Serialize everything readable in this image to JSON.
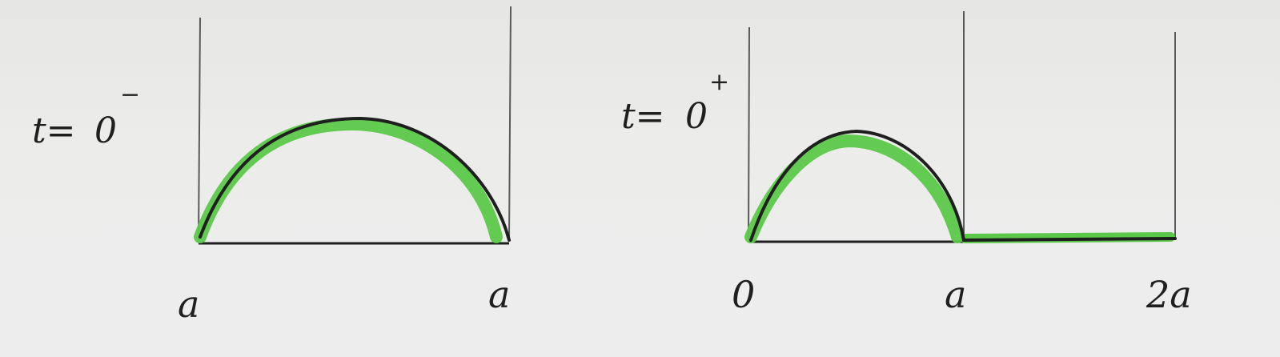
{
  "colors": {
    "paper": "#e9e9e7",
    "ink": "#1f1f1f",
    "highlight": "#5cc84a",
    "frame_line": "#555555"
  },
  "left_panel": {
    "time_label": "t=",
    "time_sup": "0",
    "time_sup_sign": "−",
    "x_labels": [
      "a",
      "a"
    ]
  },
  "right_panel": {
    "time_label": "t=",
    "time_sup": "0",
    "time_sup_sign": "+",
    "x_labels": [
      "0",
      "a",
      "2a"
    ]
  }
}
